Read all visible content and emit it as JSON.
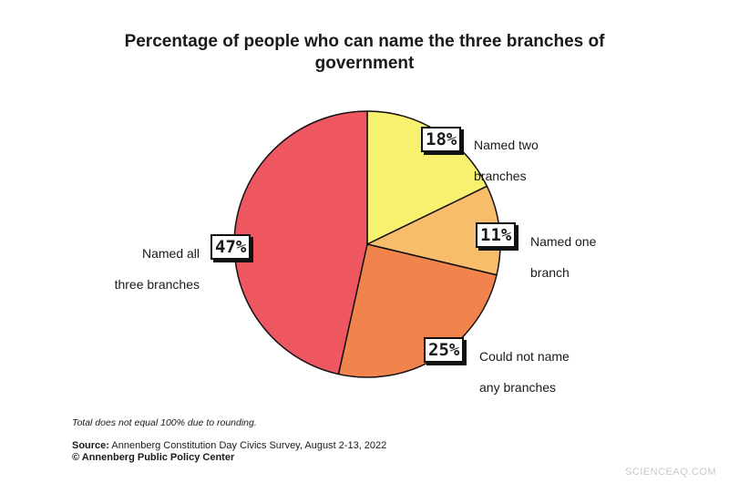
{
  "chart_data": {
    "type": "pie",
    "title": "Percentage of people who can name the three branches of government",
    "slices": [
      {
        "label": "Named two branches",
        "label_lines": [
          "Named two",
          "branches"
        ],
        "value": 18,
        "display": "18%",
        "color": "#f8f06f"
      },
      {
        "label": "Named one branch",
        "label_lines": [
          "Named one",
          "branch"
        ],
        "value": 11,
        "display": "11%",
        "color": "#f8bd6b"
      },
      {
        "label": "Could not name any branches",
        "label_lines": [
          "Could not name",
          "any branches"
        ],
        "value": 25,
        "display": "25%",
        "color": "#f1844c"
      },
      {
        "label": "Named all three branches",
        "label_lines": [
          "Named all",
          "three branches"
        ],
        "value": 47,
        "display": "47%",
        "color": "#ee5660"
      }
    ]
  },
  "footnote": "Total does not equal 100% due to rounding.",
  "source": {
    "prefix": "Source:",
    "text": "Annenberg Constitution Day Civics Survey, August 2-13, 2022",
    "credit": "© Annenberg Public Policy Center"
  },
  "watermark": "SCIENCEAQ.COM"
}
